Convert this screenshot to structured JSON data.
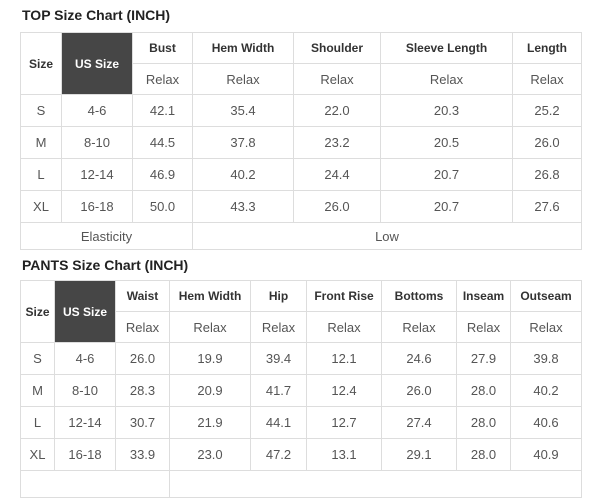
{
  "colors": {
    "dark_header_bg": "#464646",
    "dark_header_text": "#ffffff",
    "border": "#dddddd",
    "header_text": "#333333",
    "body_text": "#555555",
    "title_text": "#222222",
    "page_bg": "#ffffff"
  },
  "top_chart": {
    "title": "TOP Size Chart (INCH)",
    "corner": {
      "size_label": "Size",
      "us_size_label": "US Size"
    },
    "fit_label": "Relax",
    "columns": [
      "Bust",
      "Hem Width",
      "Shoulder",
      "Sleeve Length",
      "Length"
    ],
    "rows": [
      {
        "size": "S",
        "us_size": "4-6",
        "values": [
          "42.1",
          "35.4",
          "22.0",
          "20.3",
          "25.2"
        ]
      },
      {
        "size": "M",
        "us_size": "8-10",
        "values": [
          "44.5",
          "37.8",
          "23.2",
          "20.5",
          "26.0"
        ]
      },
      {
        "size": "L",
        "us_size": "12-14",
        "values": [
          "46.9",
          "40.2",
          "24.4",
          "20.7",
          "26.8"
        ]
      },
      {
        "size": "XL",
        "us_size": "16-18",
        "values": [
          "50.0",
          "43.3",
          "26.0",
          "20.7",
          "27.6"
        ]
      }
    ],
    "footer": {
      "label": "Elasticity",
      "value": "Low"
    }
  },
  "pants_chart": {
    "title": "PANTS Size Chart (INCH)",
    "corner": {
      "size_label": "Size",
      "us_size_label": "US Size"
    },
    "fit_label": "Relax",
    "columns": [
      "Waist",
      "Hem Width",
      "Hip",
      "Front Rise",
      "Bottoms",
      "Inseam",
      "Outseam"
    ],
    "rows": [
      {
        "size": "S",
        "us_size": "4-6",
        "values": [
          "26.0",
          "19.9",
          "39.4",
          "12.1",
          "24.6",
          "27.9",
          "39.8"
        ]
      },
      {
        "size": "M",
        "us_size": "8-10",
        "values": [
          "28.3",
          "20.9",
          "41.7",
          "12.4",
          "26.0",
          "28.0",
          "40.2"
        ]
      },
      {
        "size": "L",
        "us_size": "12-14",
        "values": [
          "30.7",
          "21.9",
          "44.1",
          "12.7",
          "27.4",
          "28.0",
          "40.6"
        ]
      },
      {
        "size": "XL",
        "us_size": "16-18",
        "values": [
          "33.9",
          "23.0",
          "47.2",
          "13.1",
          "29.1",
          "28.0",
          "40.9"
        ]
      }
    ]
  }
}
